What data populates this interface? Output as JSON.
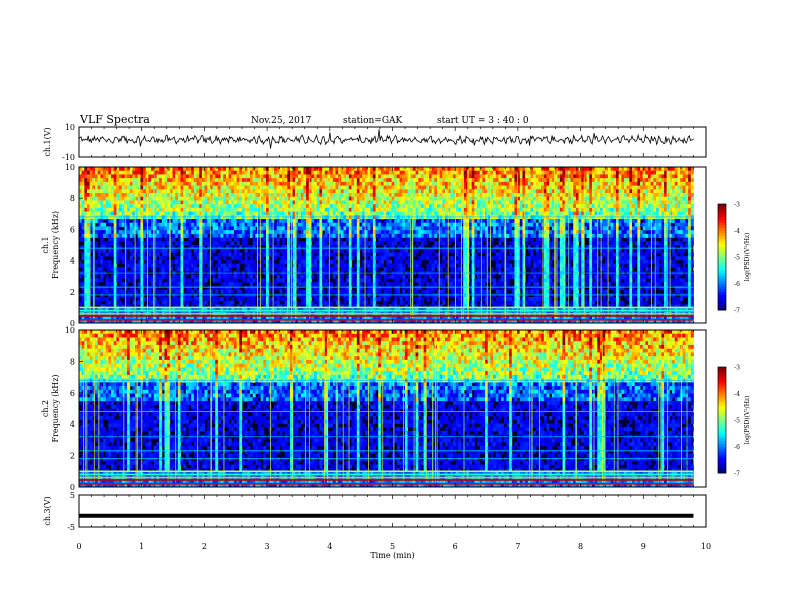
{
  "header": {
    "title": "VLF Spectra",
    "date": "Nov.25, 2017",
    "station": "station=GAK",
    "start": "start  UT =  3 : 40 : 0"
  },
  "colorbar": {
    "label": "log(PSD)(V²/Hz)",
    "ticks": [
      "-3",
      "-4",
      "-5",
      "-6",
      "-7"
    ]
  },
  "chart_data": [
    {
      "type": "line",
      "title": "",
      "ylabel": "ch.1(V)",
      "ylim": [
        -10,
        10
      ],
      "yticks": [
        "10",
        "-10"
      ],
      "xlim": [
        0,
        10
      ],
      "series": [
        {
          "values_summary": "noisy waveform centred slightly above 0 V"
        }
      ]
    },
    {
      "type": "heatmap",
      "ylabel": "ch.1\nFrequency (kHz)",
      "ylim": [
        0,
        10
      ],
      "yticks": [
        "0",
        "2",
        "4",
        "6",
        "8",
        "10"
      ],
      "xlim": [
        0,
        9.8
      ],
      "zlim": [
        -7,
        -3
      ]
    },
    {
      "type": "heatmap",
      "ylabel": "ch.2\nFrequency (kHz)",
      "ylim": [
        0,
        10
      ],
      "yticks": [
        "0",
        "2",
        "4",
        "6",
        "8",
        "10"
      ],
      "xlim": [
        0,
        9.8
      ],
      "zlim": [
        -7,
        -3
      ]
    },
    {
      "type": "line",
      "ylabel": "ch.3(V)",
      "ylim": [
        -5,
        5
      ],
      "yticks": [
        "5",
        "-5"
      ],
      "xlim": [
        0,
        10
      ],
      "series": [
        {
          "values_summary": "flat line near -1.5 V"
        }
      ]
    }
  ],
  "xaxis": {
    "label": "Time (min)",
    "ticks": [
      "0",
      "1",
      "2",
      "3",
      "4",
      "5",
      "6",
      "7",
      "8",
      "9",
      "10"
    ]
  }
}
